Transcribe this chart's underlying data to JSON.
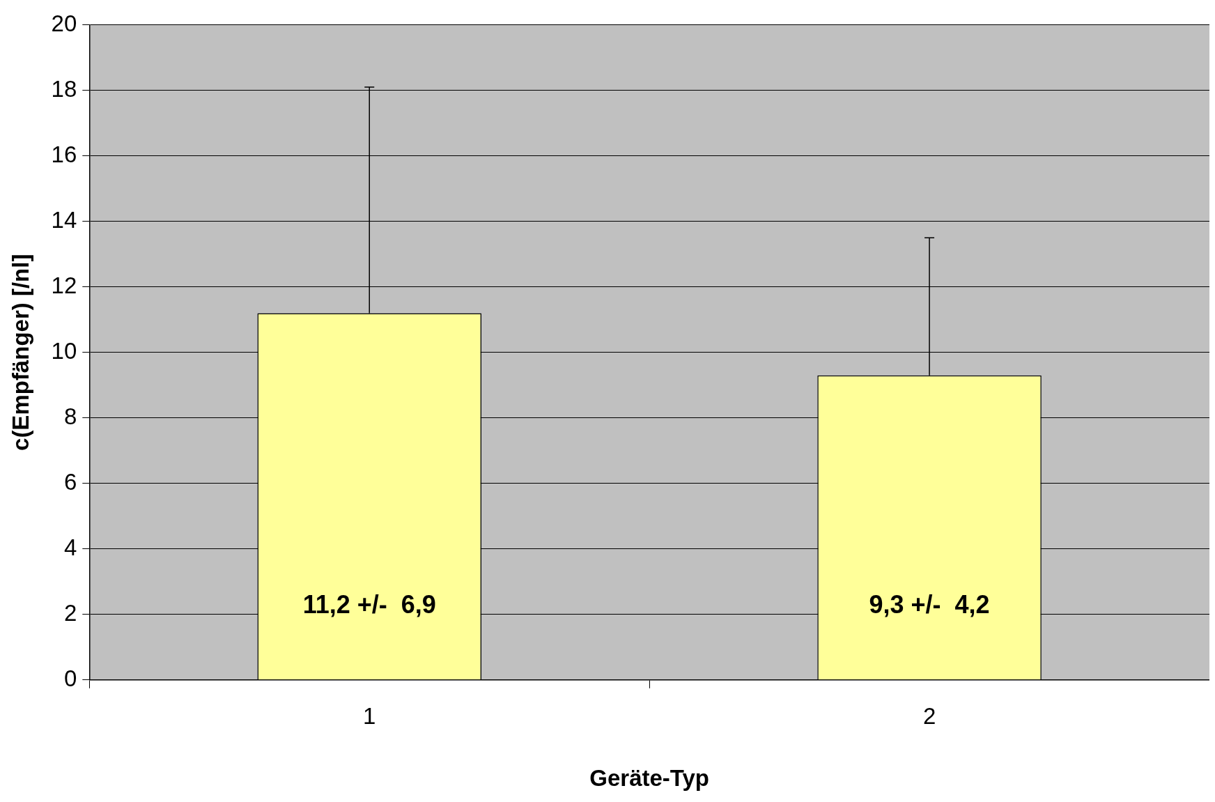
{
  "chart_data": {
    "type": "bar",
    "xlabel": "Geräte-Typ",
    "ylabel": "c(Empfänger) [/nl]",
    "categories": [
      "1",
      "2"
    ],
    "values": [
      11.2,
      9.3
    ],
    "errors": [
      [
        11.2,
        18.1
      ],
      [
        9.3,
        13.5
      ]
    ],
    "value_labels": [
      "11,2 +/-  6,9",
      "9,3 +/-  4,2"
    ],
    "color": "#ffff99",
    "ylim": [
      0,
      20
    ],
    "yticks": [
      0,
      2,
      4,
      6,
      8,
      10,
      12,
      14,
      16,
      18,
      20
    ],
    "grid": "y",
    "legend": false
  }
}
